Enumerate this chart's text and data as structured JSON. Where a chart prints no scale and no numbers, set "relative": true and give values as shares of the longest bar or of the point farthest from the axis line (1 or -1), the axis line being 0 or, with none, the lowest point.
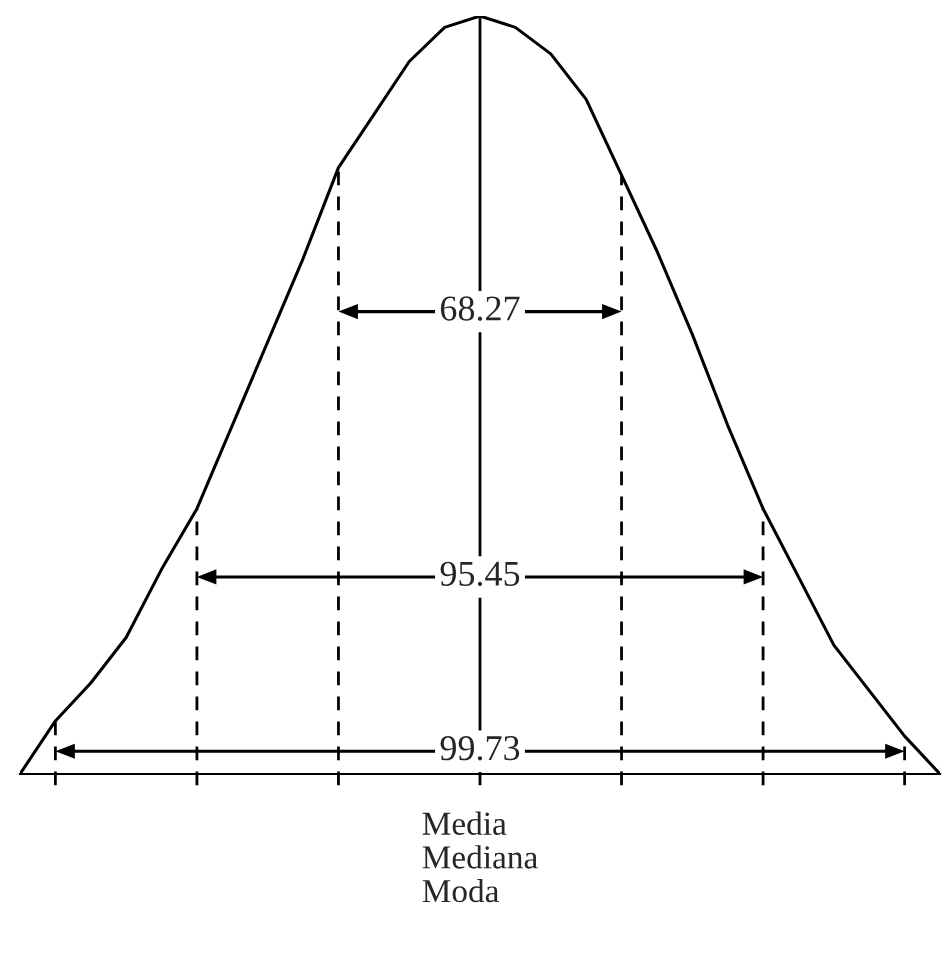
{
  "chart_data": {
    "type": "line",
    "relative": true,
    "xlabel": "Media\nMediana\nModa",
    "categories": [
      null,
      null,
      null,
      null,
      null,
      null,
      null,
      null,
      null,
      null,
      null,
      null,
      null,
      null,
      null,
      null,
      null,
      null,
      null,
      null,
      null,
      null,
      null,
      null,
      null,
      null,
      null
    ],
    "series": [
      {
        "color": "#000000",
        "values": [
          0,
          0.07,
          0.12,
          0.18,
          0.27,
          0.35,
          0.46,
          0.57,
          0.68,
          0.8,
          0.87,
          0.94,
          0.985,
          1,
          0.985,
          0.95,
          0.89,
          0.79,
          0.69,
          0.58,
          0.46,
          0.35,
          0.26,
          0.17,
          0.11,
          0.05,
          0
        ]
      }
    ],
    "marker": "none",
    "line_style": "solid",
    "annotations": [
      "68.27",
      "95.45",
      "99.73"
    ]
  }
}
